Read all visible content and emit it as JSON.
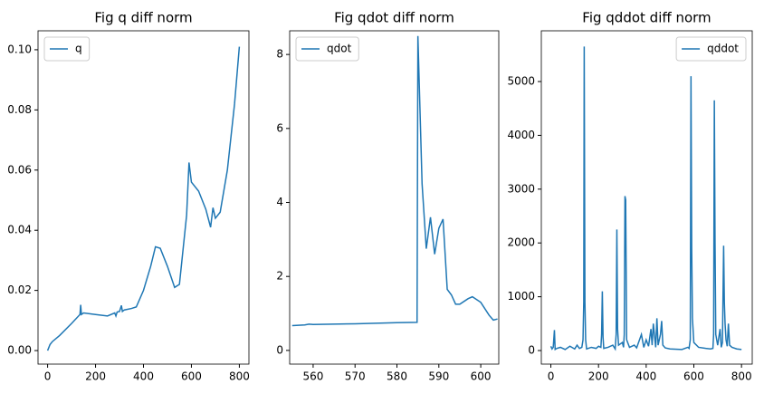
{
  "chart_data": [
    {
      "type": "line",
      "title": "Fig q diff norm",
      "legend": "upper left",
      "series": [
        {
          "name": "q",
          "color": "#1f77b4",
          "x": [
            0,
            10,
            20,
            50,
            100,
            135,
            138,
            141,
            150,
            200,
            250,
            280,
            285,
            290,
            300,
            308,
            312,
            320,
            350,
            370,
            400,
            430,
            450,
            470,
            500,
            530,
            550,
            580,
            590,
            600,
            630,
            660,
            680,
            690,
            700,
            720,
            750,
            780,
            800
          ],
          "values": [
            0,
            0.002,
            0.003,
            0.005,
            0.009,
            0.012,
            0.0152,
            0.012,
            0.0125,
            0.012,
            0.0115,
            0.0125,
            0.0115,
            0.0128,
            0.013,
            0.015,
            0.013,
            0.0135,
            0.014,
            0.0145,
            0.02,
            0.028,
            0.0345,
            0.034,
            0.028,
            0.021,
            0.022,
            0.045,
            0.0625,
            0.056,
            0.053,
            0.047,
            0.041,
            0.0475,
            0.044,
            0.046,
            0.06,
            0.082,
            0.101
          ]
        }
      ],
      "xlim": [
        -40,
        840
      ],
      "xticks": [
        0,
        200,
        400,
        600,
        800
      ],
      "ylim": [
        -0.0045,
        0.1063
      ],
      "yticks": [
        {
          "value": 0,
          "label": "0.00"
        },
        {
          "value": 0.02,
          "label": "0.02"
        },
        {
          "value": 0.04,
          "label": "0.04"
        },
        {
          "value": 0.06,
          "label": "0.06"
        },
        {
          "value": 0.08,
          "label": "0.08"
        },
        {
          "value": 0.1,
          "label": "0.10"
        }
      ]
    },
    {
      "type": "line",
      "title": "Fig qdot diff norm",
      "legend": "upper left",
      "series": [
        {
          "name": "qdot",
          "color": "#1f77b4",
          "x": [
            555,
            558,
            559,
            560,
            570,
            580,
            584.8,
            585,
            586,
            587,
            588,
            589,
            590,
            591,
            592,
            593,
            594,
            595,
            597,
            598,
            600,
            602,
            603,
            604
          ],
          "values": [
            0.67,
            0.69,
            0.71,
            0.7,
            0.72,
            0.75,
            0.76,
            8.5,
            4.5,
            2.75,
            3.6,
            2.6,
            3.3,
            3.55,
            1.65,
            1.5,
            1.25,
            1.25,
            1.4,
            1.45,
            1.3,
            0.95,
            0.82,
            0.85
          ]
        }
      ],
      "xlim": [
        554.4,
        604.3
      ],
      "xticks": [
        560,
        570,
        580,
        590,
        600
      ],
      "ylim": [
        -0.37,
        8.64
      ],
      "yticks": [
        0,
        2,
        4,
        6,
        8
      ]
    },
    {
      "type": "line",
      "title": "Fig qddot diff norm",
      "legend": "upper right",
      "series": [
        {
          "name": "qddot",
          "color": "#1f77b4",
          "x": [
            0,
            5,
            10,
            15,
            18,
            25,
            40,
            60,
            80,
            100,
            110,
            120,
            130,
            135,
            138,
            140,
            143,
            146,
            150,
            170,
            190,
            200,
            210,
            213,
            216,
            219,
            222,
            240,
            260,
            270,
            274,
            277,
            280,
            284,
            300,
            305,
            308,
            311,
            314,
            318,
            330,
            350,
            360,
            380,
            390,
            400,
            410,
            420,
            425,
            430,
            440,
            445,
            450,
            460,
            465,
            470,
            480,
            500,
            550,
            575,
            580,
            585,
            588,
            591,
            594,
            600,
            620,
            650,
            670,
            680,
            683,
            686,
            689,
            692,
            700,
            705,
            710,
            715,
            720,
            725,
            728,
            731,
            735,
            740,
            745,
            750,
            760,
            780,
            800
          ],
          "values": [
            80,
            30,
            60,
            380,
            20,
            40,
            60,
            20,
            80,
            30,
            100,
            40,
            60,
            200,
            900,
            5650,
            900,
            200,
            30,
            60,
            40,
            80,
            60,
            300,
            1100,
            250,
            40,
            60,
            100,
            30,
            300,
            2250,
            400,
            100,
            150,
            60,
            300,
            2870,
            2800,
            200,
            60,
            100,
            50,
            300,
            60,
            200,
            80,
            400,
            100,
            500,
            60,
            600,
            100,
            300,
            550,
            100,
            50,
            30,
            20,
            60,
            40,
            200,
            5100,
            1900,
            600,
            150,
            60,
            40,
            30,
            40,
            300,
            4650,
            2000,
            300,
            100,
            250,
            400,
            60,
            150,
            1950,
            900,
            500,
            200,
            80,
            500,
            100,
            60,
            30,
            20
          ]
        }
      ],
      "xlim": [
        -40,
        845
      ],
      "xticks": [
        0,
        200,
        400,
        600,
        800
      ],
      "ylim": [
        -252,
        5943
      ],
      "yticks": [
        0,
        1000,
        2000,
        3000,
        4000,
        5000
      ]
    }
  ]
}
